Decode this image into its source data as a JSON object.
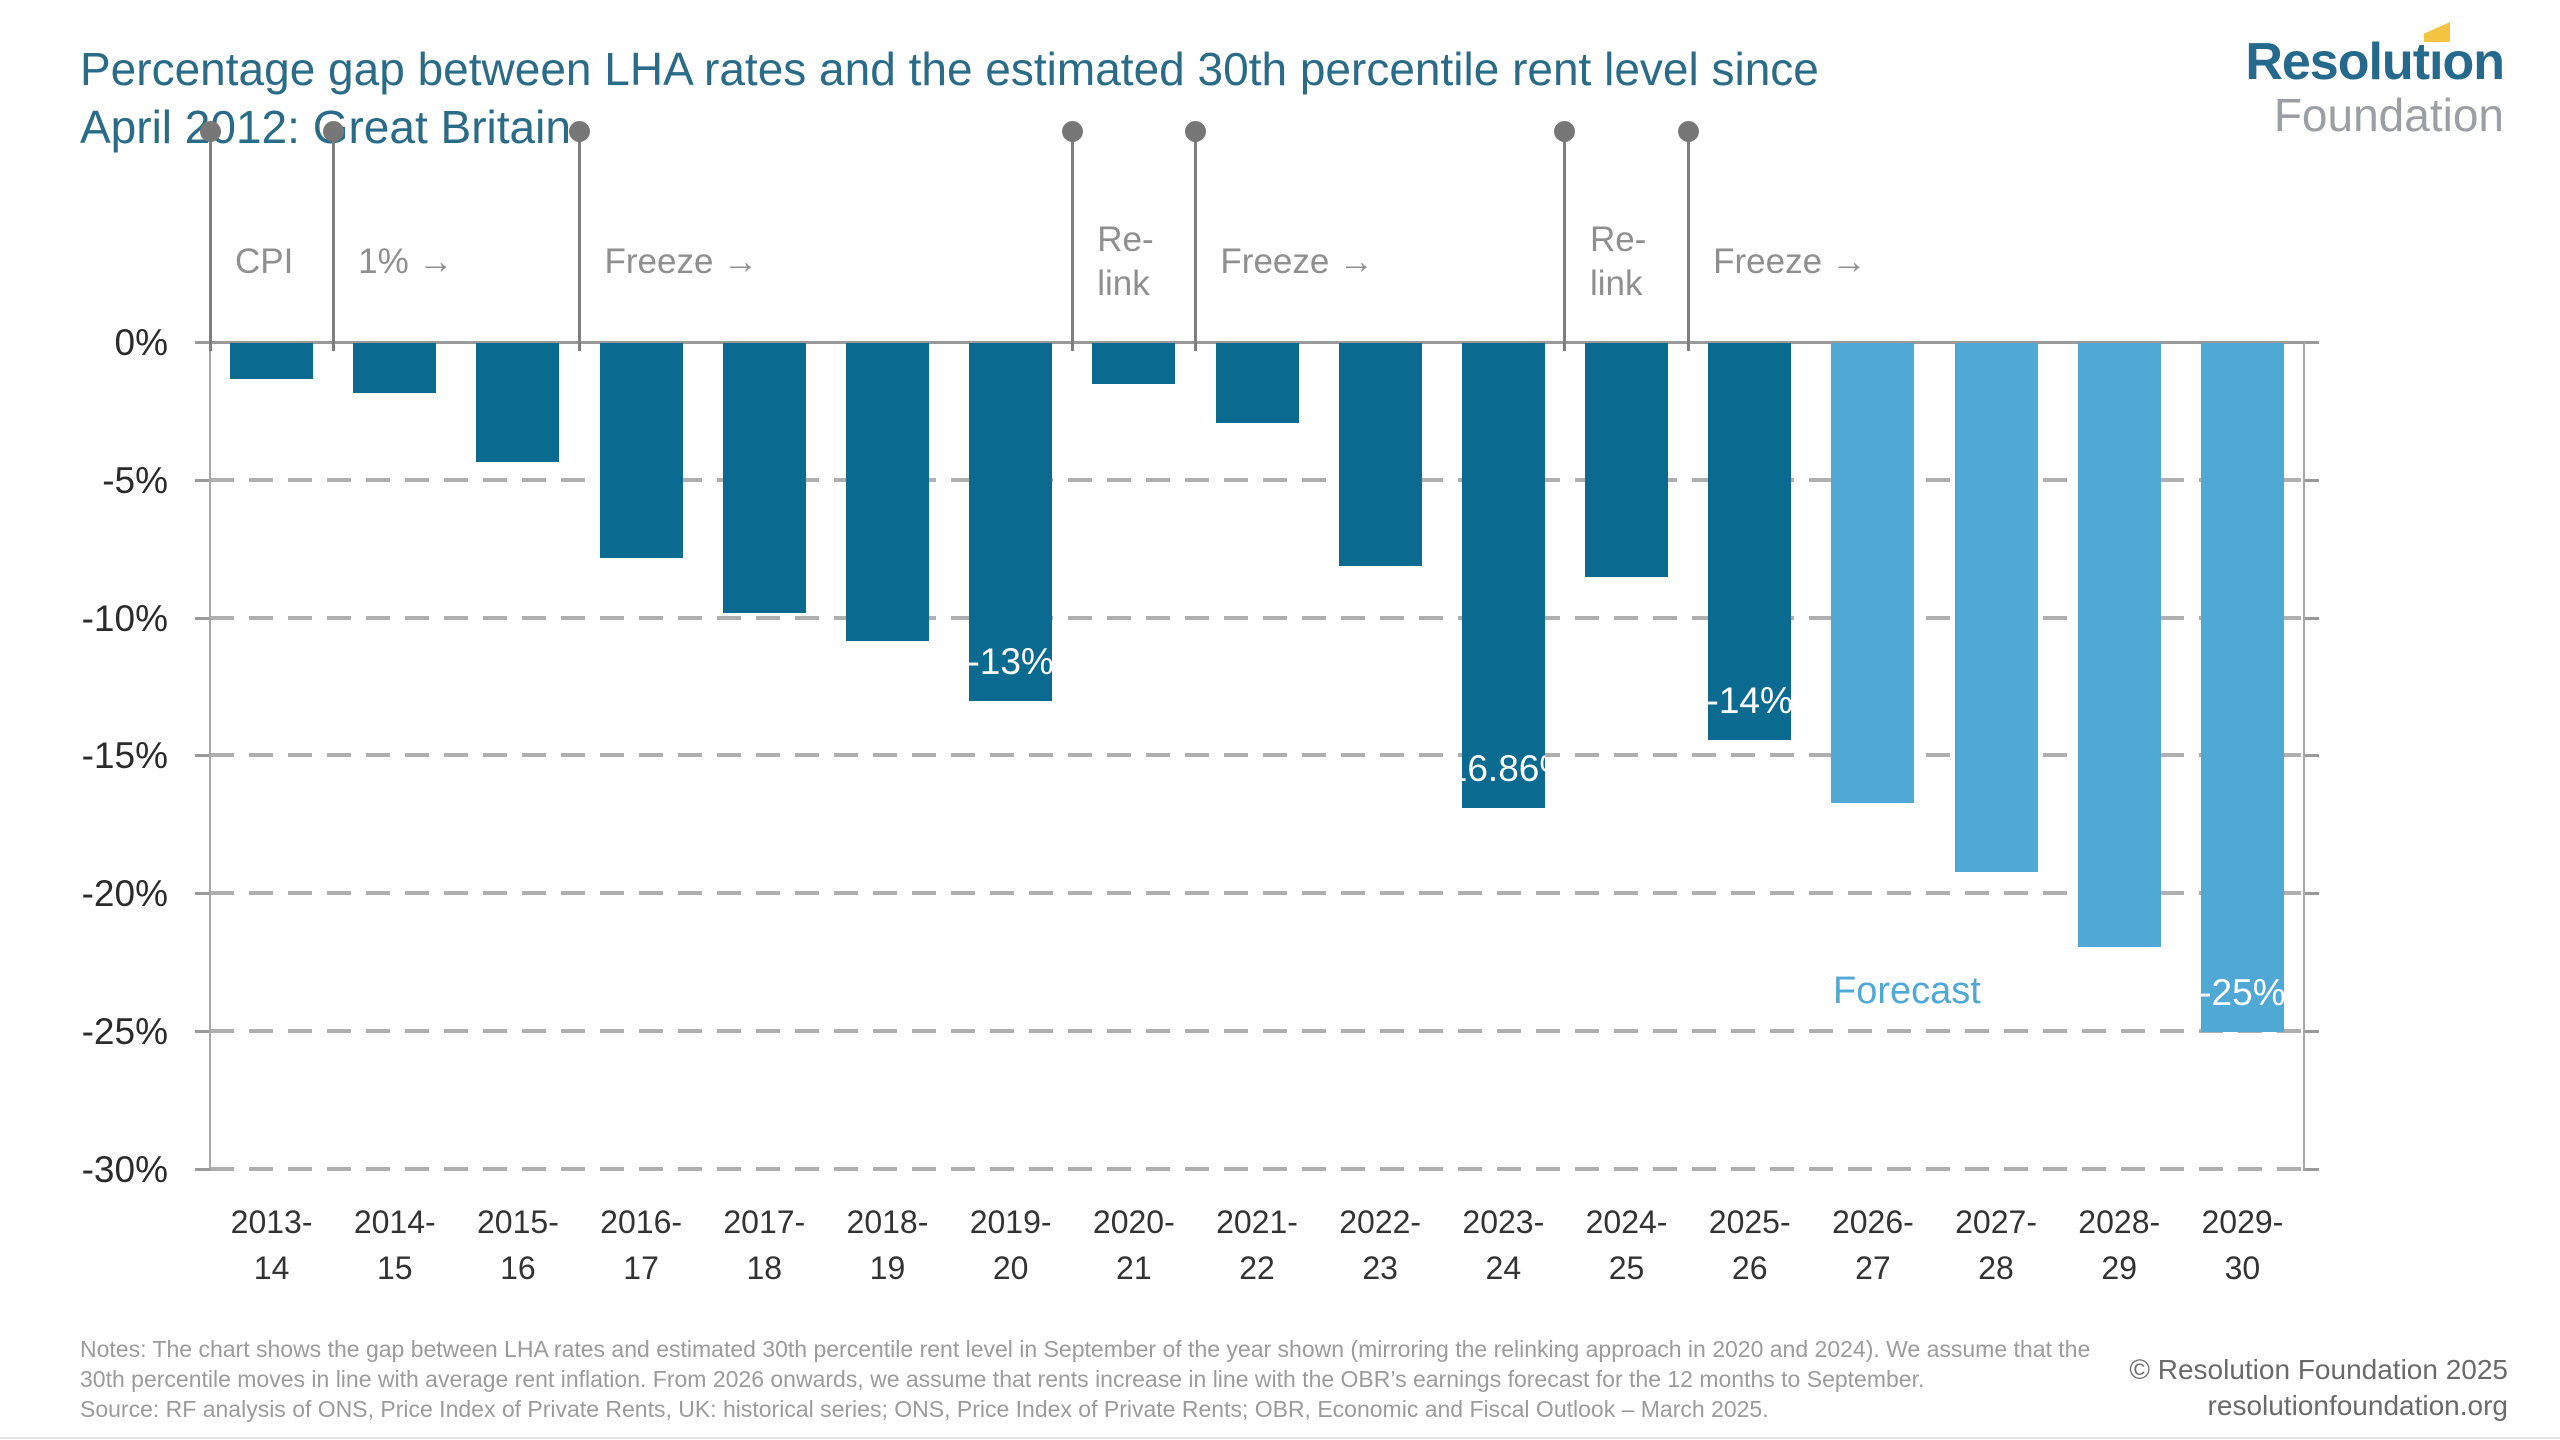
{
  "header": {
    "title_line1": "Percentage gap between LHA rates and the estimated 30th percentile rent level since",
    "title_line2": "April 2012: Great Britain",
    "logo": {
      "primary": "Resolution",
      "secondary": "Foundation",
      "accent_color": "#F2C441"
    }
  },
  "chart_data": {
    "type": "bar",
    "title": "Percentage gap between LHA rates and the estimated 30th percentile rent level since April 2012: Great Britain",
    "xlabel": "",
    "ylabel": "",
    "ylim": [
      -30,
      0
    ],
    "ytick_labels": [
      "0%",
      "-5%",
      "-10%",
      "-15%",
      "-20%",
      "-25%",
      "-30%"
    ],
    "grid": "horizontal-dashed",
    "legend_position": "in-plot lower right",
    "categories": [
      "2013-14",
      "2014-15",
      "2015-16",
      "2016-17",
      "2017-18",
      "2018-19",
      "2019-20",
      "2020-21",
      "2021-22",
      "2022-23",
      "2023-24",
      "2024-25",
      "2025-26",
      "2026-27",
      "2027-28",
      "2028-29",
      "2029-30"
    ],
    "values": [
      -1.3,
      -1.8,
      -4.3,
      -7.8,
      -9.8,
      -10.8,
      -13.0,
      -1.5,
      -2.9,
      -8.1,
      -16.86,
      -8.5,
      -14.4,
      -16.7,
      -19.2,
      -21.9,
      -25.0
    ],
    "bar_value_labels": [
      null,
      null,
      null,
      null,
      null,
      null,
      "-13%",
      null,
      null,
      null,
      "-16.86%",
      null,
      "-14%",
      null,
      null,
      null,
      "-25%"
    ],
    "forecast_start_category": "2026-27",
    "forecast_label": "Forecast",
    "colors": {
      "actual": "#0A6A90",
      "forecast": "#4FA9D4"
    },
    "annotations": [
      {
        "lines": [
          "CPI"
        ],
        "at_category": "2013-14"
      },
      {
        "lines": [
          "1% →"
        ],
        "at_category": "2014-15"
      },
      {
        "lines": [
          "Freeze →"
        ],
        "at_category": "2016-17"
      },
      {
        "lines": [
          "Re-",
          "link"
        ],
        "at_category": "2020-21"
      },
      {
        "lines": [
          "Freeze →"
        ],
        "at_category": "2021-22"
      },
      {
        "lines": [
          "Re-",
          "link"
        ],
        "at_category": "2024-25"
      },
      {
        "lines": [
          "Freeze →"
        ],
        "at_category": "2025-26"
      }
    ]
  },
  "footer": {
    "notes": "Notes: The chart shows the gap between LHA rates and estimated 30th percentile rent level in September of the year shown (mirroring the relinking approach in 2020 and 2024). We assume that the 30th percentile moves in line with average rent inflation. From 2026 onwards, we assume that rents increase in line with the OBR’s earnings forecast for the 12 months to September.",
    "source": "Source: RF analysis of ONS, Price Index of Private Rents, UK: historical series; ONS, Price Index of Private Rents; OBR, Economic and Fiscal Outlook – March 2025.",
    "copyright": "© Resolution Foundation 2025",
    "website": "resolutionfoundation.org"
  }
}
